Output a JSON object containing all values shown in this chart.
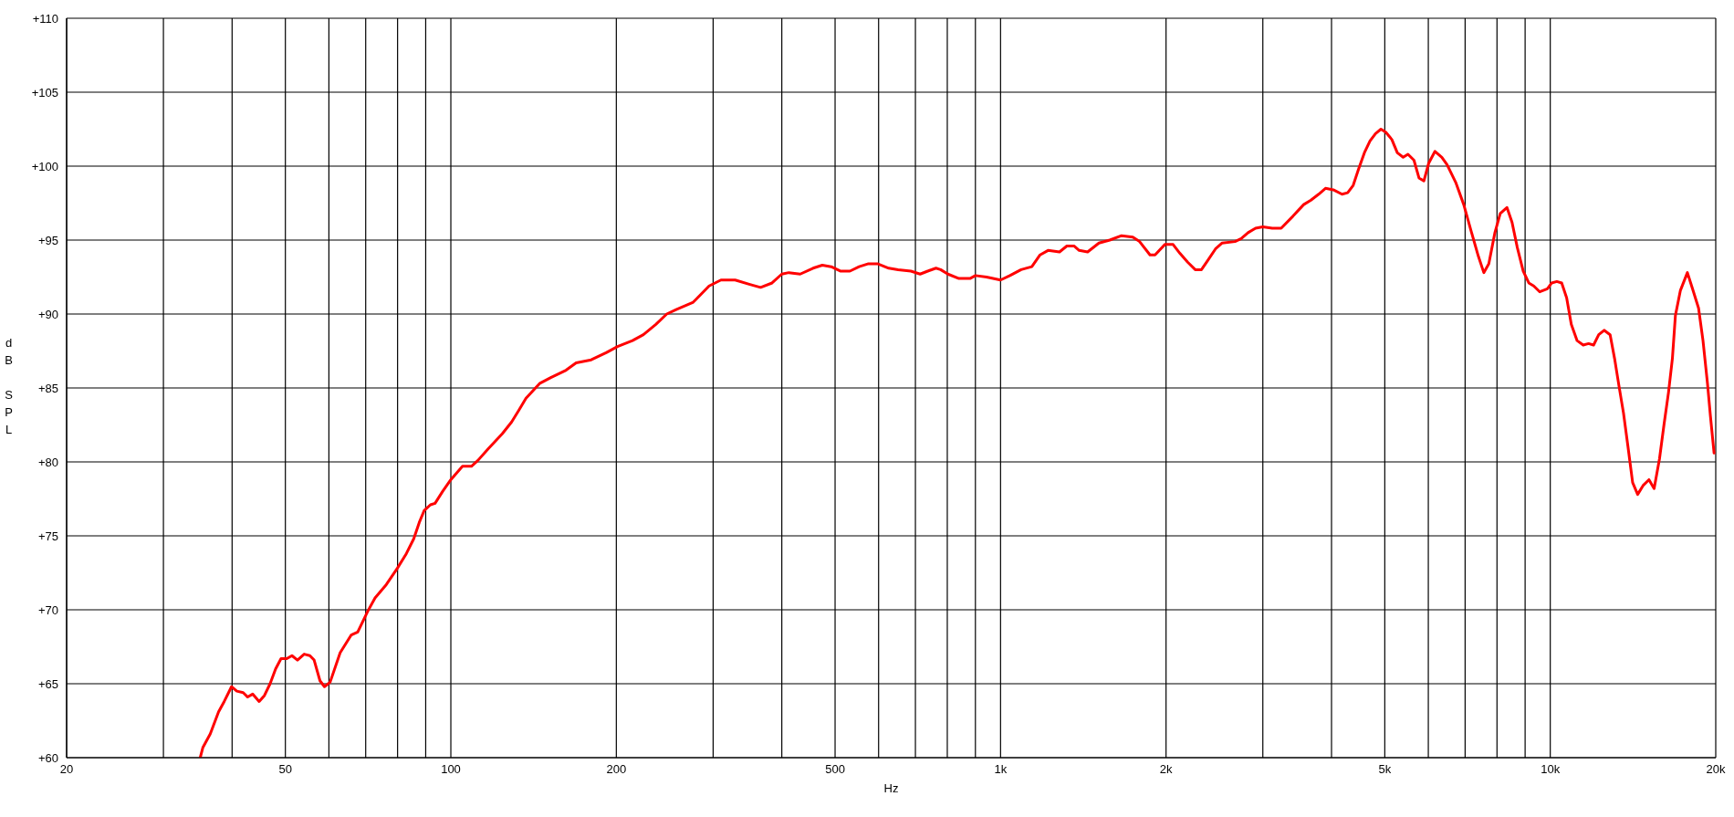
{
  "chart_data": {
    "type": "line",
    "xlabel": "Hz",
    "ylabel": "dB SPL",
    "log": "x",
    "grid": true,
    "xlim": [
      20,
      20000
    ],
    "xticks": [
      {
        "value": 20,
        "label": "20"
      },
      {
        "value": 30,
        "label": null
      },
      {
        "value": 40,
        "label": null
      },
      {
        "value": 50,
        "label": "50"
      },
      {
        "value": 60,
        "label": null
      },
      {
        "value": 70,
        "label": null
      },
      {
        "value": 80,
        "label": null
      },
      {
        "value": 90,
        "label": null
      },
      {
        "value": 100,
        "label": "100"
      },
      {
        "value": 200,
        "label": "200"
      },
      {
        "value": 300,
        "label": null
      },
      {
        "value": 400,
        "label": null
      },
      {
        "value": 500,
        "label": "500"
      },
      {
        "value": 600,
        "label": null
      },
      {
        "value": 700,
        "label": null
      },
      {
        "value": 800,
        "label": null
      },
      {
        "value": 900,
        "label": null
      },
      {
        "value": 1000,
        "label": "1k"
      },
      {
        "value": 2000,
        "label": "2k"
      },
      {
        "value": 3000,
        "label": null
      },
      {
        "value": 4000,
        "label": null
      },
      {
        "value": 5000,
        "label": "5k"
      },
      {
        "value": 6000,
        "label": null
      },
      {
        "value": 7000,
        "label": null
      },
      {
        "value": 8000,
        "label": null
      },
      {
        "value": 9000,
        "label": null
      },
      {
        "value": 10000,
        "label": "10k"
      },
      {
        "value": 20000,
        "label": "20k"
      }
    ],
    "ylim": [
      60,
      110
    ],
    "yticks": [
      {
        "value": 60,
        "label": "+60"
      },
      {
        "value": 65,
        "label": "+65"
      },
      {
        "value": 70,
        "label": "+70"
      },
      {
        "value": 75,
        "label": "+75"
      },
      {
        "value": 80,
        "label": "+80"
      },
      {
        "value": 85,
        "label": "+85"
      },
      {
        "value": 90,
        "label": "+90"
      },
      {
        "value": 95,
        "label": "+95"
      },
      {
        "value": 100,
        "label": "+100"
      },
      {
        "value": 105,
        "label": "+105"
      },
      {
        "value": 110,
        "label": "+110"
      }
    ],
    "x": [
      35.0,
      35.4,
      36.5,
      37.8,
      38.7,
      39.9,
      40.8,
      41.9,
      42.7,
      43.6,
      44.8,
      45.8,
      46.9,
      48.0,
      49.1,
      50.3,
      51.4,
      52.6,
      54.1,
      55.4,
      56.4,
      57.8,
      58.9,
      60.3,
      62.9,
      65.9,
      67.7,
      70.6,
      72.8,
      76.3,
      79.9,
      83.0,
      85.6,
      87.6,
      89.4,
      91.8,
      93.6,
      96.6,
      100,
      105,
      109,
      112,
      117,
      124,
      129,
      133,
      137,
      145,
      152,
      162,
      169,
      180,
      192,
      201,
      214,
      224,
      236,
      247,
      257,
      276,
      295,
      310,
      329,
      350,
      366,
      384,
      400,
      412,
      432,
      456,
      474,
      492,
      512,
      532,
      553,
      575,
      597,
      626,
      651,
      687,
      714,
      737,
      763,
      778,
      802,
      840,
      880,
      900,
      943,
      1000,
      1040,
      1090,
      1140,
      1180,
      1220,
      1280,
      1320,
      1360,
      1390,
      1440,
      1510,
      1580,
      1660,
      1740,
      1790,
      1870,
      1910,
      1990,
      2060,
      2120,
      2190,
      2260,
      2320,
      2380,
      2460,
      2530,
      2670,
      2740,
      2820,
      2910,
      3000,
      3120,
      3240,
      3400,
      3560,
      3670,
      3790,
      3900,
      4030,
      4180,
      4280,
      4380,
      4480,
      4590,
      4700,
      4810,
      4920,
      5020,
      5150,
      5270,
      5400,
      5510,
      5650,
      5770,
      5890,
      6010,
      6170,
      6350,
      6490,
      6730,
      6960,
      7180,
      7400,
      7570,
      7730,
      7930,
      8110,
      8340,
      8520,
      8710,
      8930,
      9140,
      9330,
      9570,
      9880,
      10060,
      10280,
      10490,
      10710,
      10920,
      11190,
      11480,
      11740,
      11990,
      12250,
      12530,
      12850,
      13090,
      13340,
      13590,
      13850,
      14120,
      14420,
      14750,
      15120,
      15450,
      15800,
      16100,
      16410,
      16680,
      16890,
      17250,
      17760,
      18150,
      18610,
      18960,
      19320,
      19560,
      19860
    ],
    "series": [
      {
        "color": "#ff0000",
        "values": [
          60.0,
          60.7,
          61.6,
          63.1,
          63.8,
          64.8,
          64.5,
          64.4,
          64.1,
          64.3,
          63.8,
          64.2,
          65.0,
          66.0,
          66.7,
          66.7,
          66.9,
          66.6,
          67.0,
          66.9,
          66.6,
          65.2,
          64.8,
          65.1,
          67.1,
          68.3,
          68.5,
          69.9,
          70.8,
          71.7,
          72.8,
          73.8,
          74.8,
          75.9,
          76.7,
          77.1,
          77.2,
          78.0,
          78.8,
          79.7,
          79.7,
          80.1,
          80.9,
          81.9,
          82.7,
          83.5,
          84.3,
          85.3,
          85.7,
          86.2,
          86.7,
          86.9,
          87.4,
          87.8,
          88.2,
          88.6,
          89.3,
          90.0,
          90.3,
          90.8,
          91.9,
          92.3,
          92.3,
          92.0,
          91.8,
          92.1,
          92.7,
          92.8,
          92.7,
          93.1,
          93.3,
          93.2,
          92.9,
          92.9,
          93.2,
          93.4,
          93.4,
          93.1,
          93.0,
          92.9,
          92.7,
          92.9,
          93.1,
          93.0,
          92.7,
          92.4,
          92.4,
          92.6,
          92.5,
          92.3,
          92.6,
          93.0,
          93.2,
          94.0,
          94.3,
          94.2,
          94.6,
          94.6,
          94.3,
          94.2,
          94.8,
          95.0,
          95.3,
          95.2,
          94.9,
          94.0,
          94.0,
          94.7,
          94.7,
          94.1,
          93.5,
          93.0,
          93.0,
          93.6,
          94.4,
          94.8,
          94.9,
          95.1,
          95.5,
          95.8,
          95.9,
          95.8,
          95.8,
          96.6,
          97.4,
          97.7,
          98.1,
          98.5,
          98.4,
          98.1,
          98.2,
          98.7,
          99.8,
          100.9,
          101.7,
          102.2,
          102.5,
          102.3,
          101.8,
          100.9,
          100.6,
          100.8,
          100.4,
          99.2,
          99.0,
          100.2,
          101.0,
          100.6,
          100.1,
          98.9,
          97.4,
          95.6,
          93.9,
          92.8,
          93.4,
          95.5,
          96.8,
          97.2,
          96.2,
          94.5,
          92.9,
          92.1,
          91.9,
          91.5,
          91.7,
          92.1,
          92.2,
          92.1,
          91.1,
          89.3,
          88.2,
          87.9,
          88.0,
          87.9,
          88.6,
          88.9,
          88.6,
          87.0,
          85.1,
          83.3,
          81.0,
          78.6,
          77.8,
          78.4,
          78.8,
          78.2,
          80.2,
          82.5,
          84.7,
          87.0,
          89.9,
          91.6,
          92.8,
          91.7,
          90.4,
          88.2,
          85.3,
          83.1,
          80.6
        ]
      }
    ]
  }
}
